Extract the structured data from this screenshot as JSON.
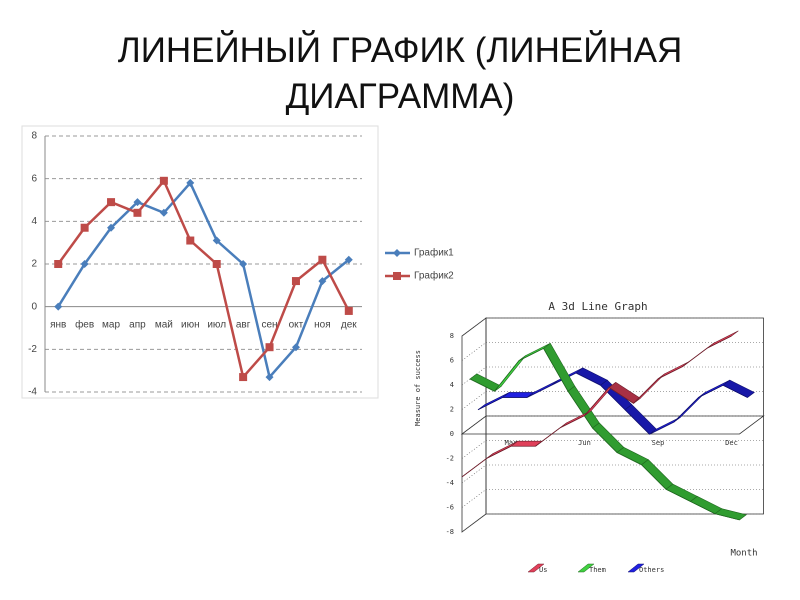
{
  "title": "ЛИНЕЙНЫЙ ГРАФИК (ЛИНЕЙНАЯ ДИАГРАММА)",
  "chart_data": [
    {
      "type": "line",
      "categories": [
        "янв",
        "фев",
        "мар",
        "апр",
        "май",
        "июн",
        "июл",
        "авг",
        "сен",
        "окт",
        "ноя",
        "дек"
      ],
      "series": [
        {
          "name": "График1",
          "color": "#4a7ebb",
          "marker": "diamond",
          "values": [
            0,
            2,
            3.7,
            4.9,
            4.4,
            5.8,
            3.1,
            2,
            -3.3,
            -1.9,
            1.2,
            2.2
          ]
        },
        {
          "name": "График2",
          "color": "#be4b48",
          "marker": "square",
          "values": [
            2,
            3.7,
            4.9,
            4.4,
            5.9,
            3.1,
            2,
            -3.3,
            -1.9,
            1.2,
            2.2,
            -0.2
          ]
        }
      ],
      "ylim": [
        -4,
        8
      ],
      "yticks": [
        -4,
        -2,
        0,
        2,
        4,
        6,
        8
      ],
      "grid": true,
      "legend": "right"
    },
    {
      "type": "line",
      "three_d": true,
      "title": "A 3d Line Graph",
      "y_label": "Measure of success",
      "x_label": "Month",
      "categories": [
        null,
        null,
        "Mar",
        null,
        null,
        "Jun",
        null,
        null,
        "Sep",
        null,
        null,
        "Dec"
      ],
      "series": [
        {
          "name": "Us",
          "color": "#e0405a",
          "values": [
            -3.5,
            -2,
            -1,
            -1,
            0.5,
            1.5,
            3.8,
            2.5,
            4.5,
            5.5,
            7,
            8
          ]
        },
        {
          "name": "Them",
          "color": "#40d040",
          "values": [
            4,
            3,
            5.5,
            6.5,
            3,
            0,
            -2,
            -3,
            -5,
            -6,
            -7,
            -7.5
          ]
        },
        {
          "name": "Others",
          "color": "#2020e0",
          "values": [
            1,
            2,
            2,
            3,
            4,
            3,
            1,
            -1,
            0,
            2,
            3,
            2
          ]
        }
      ],
      "ylim": [
        -8,
        8
      ],
      "yticks": [
        -8,
        -6,
        -4,
        -2,
        0,
        2,
        4,
        6,
        8
      ],
      "grid": true,
      "legend": "bottom"
    }
  ]
}
